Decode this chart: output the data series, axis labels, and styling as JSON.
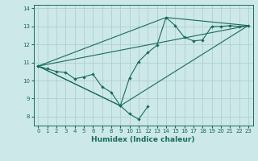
{
  "xlabel": "Humidex (Indice chaleur)",
  "bg_color": "#cce8e8",
  "grid_color": "#aacccc",
  "line_color": "#1a6b5a",
  "xlim": [
    -0.5,
    23.5
  ],
  "ylim": [
    7.5,
    14.2
  ],
  "xticks": [
    0,
    1,
    2,
    3,
    4,
    5,
    6,
    7,
    8,
    9,
    10,
    11,
    12,
    13,
    14,
    15,
    16,
    17,
    18,
    19,
    20,
    21,
    22,
    23
  ],
  "yticks": [
    8,
    9,
    10,
    11,
    12,
    13,
    14
  ],
  "series1_x": [
    0,
    1,
    2,
    3,
    4,
    5,
    6,
    7,
    8,
    9,
    10,
    11,
    12
  ],
  "series1_y": [
    10.8,
    10.65,
    10.5,
    10.45,
    10.1,
    10.2,
    10.35,
    9.65,
    9.35,
    8.6,
    8.15,
    7.85,
    8.55
  ],
  "series2_x": [
    0,
    9,
    10,
    11,
    12,
    13,
    14,
    15,
    16,
    17,
    18,
    19,
    20,
    21,
    22,
    23
  ],
  "series2_y": [
    10.8,
    8.6,
    10.15,
    11.05,
    11.55,
    11.95,
    13.5,
    13.05,
    12.4,
    12.2,
    12.25,
    13.0,
    13.0,
    13.05,
    13.0,
    13.05
  ],
  "trend1_x": [
    0,
    23
  ],
  "trend1_y": [
    10.8,
    13.05
  ],
  "trend2_x": [
    0,
    9,
    23
  ],
  "trend2_y": [
    10.8,
    8.6,
    13.05
  ],
  "trend3_x": [
    0,
    14,
    23
  ],
  "trend3_y": [
    10.8,
    13.5,
    13.05
  ]
}
